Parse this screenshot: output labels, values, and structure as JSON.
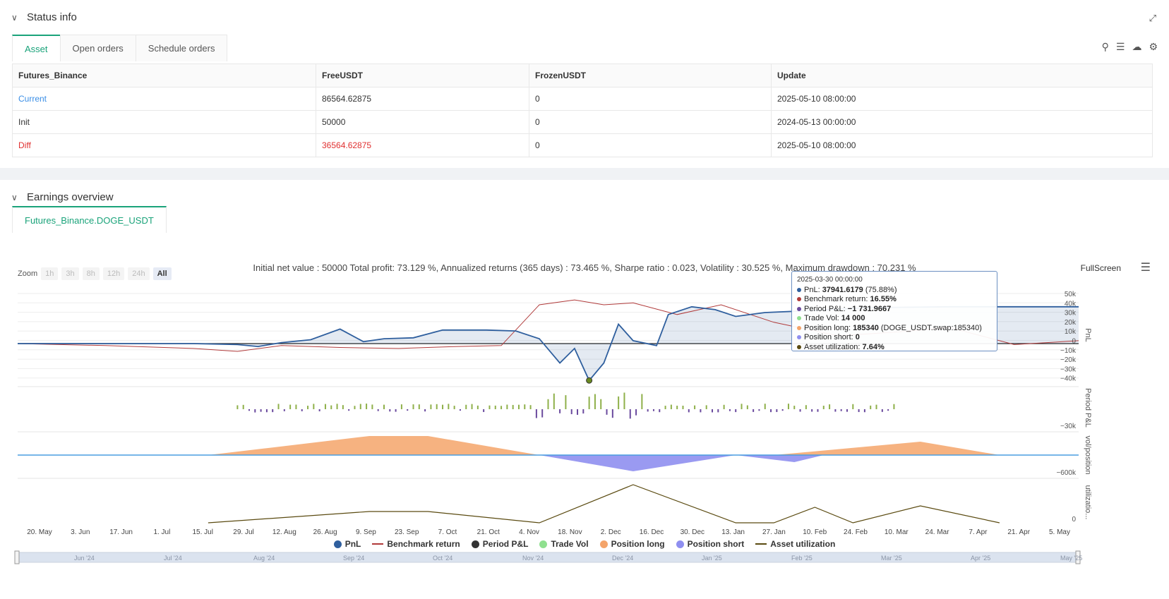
{
  "status": {
    "title": "Status info",
    "tabs": [
      "Asset",
      "Open orders",
      "Schedule orders"
    ],
    "table": {
      "headers": [
        "Futures_Binance",
        "FreeUSDT",
        "FrozenUSDT",
        "Update"
      ],
      "rows": [
        [
          "Current",
          "86564.62875",
          "0",
          "2025-05-10 08:00:00"
        ],
        [
          "Init",
          "50000",
          "0",
          "2024-05-13 00:00:00"
        ],
        [
          "Diff",
          "36564.62875",
          "0",
          "2025-05-10 08:00:00"
        ]
      ]
    }
  },
  "earnings": {
    "title": "Earnings overview",
    "tab": "Futures_Binance.DOGE_USDT",
    "summary": "Initial net value : 50000 Total profit: 73.129 %, Annualized returns (365 days) : 73.465 %, Sharpe ratio : 0.023, Volatility : 30.525 %, Maximum drawdown : 70.231 %",
    "fullscreen": "FullScreen",
    "zoom_label": "Zoom",
    "zoom_buttons": [
      "1h",
      "3h",
      "8h",
      "12h",
      "24h",
      "All"
    ]
  },
  "tooltip": {
    "date": "2025-03-30 00:00:00",
    "pnl_label": "PnL: ",
    "pnl_value": "37941.6179",
    "pnl_pct": " (75.88%)",
    "bench_label": "Benchmark return: ",
    "bench_value": "16.55%",
    "period_label": "Period P&L: ",
    "period_value": "−1 731.9667",
    "vol_label": "Trade Vol: ",
    "vol_value": "14 000",
    "long_label": "Position long: ",
    "long_value": "185340",
    "long_extra": " (DOGE_USDT.swap:185340)",
    "short_label": "Position short: ",
    "short_value": "0",
    "util_label": "Asset utilization: ",
    "util_value": "7.64%"
  },
  "axes": {
    "pnl_ticks": [
      "50k",
      "40k",
      "30k",
      "20k",
      "10k",
      "0",
      "−10k",
      "−20k",
      "−30k",
      "−40k"
    ],
    "period_tick": "−30k",
    "position_tick": "−600k",
    "util_tick": "0",
    "panel_labels": [
      "PnL",
      "Period P&L",
      "vol/position",
      "utilizatio..."
    ],
    "x_ticks": [
      "20. May",
      "3. Jun",
      "17. Jun",
      "1. Jul",
      "15. Jul",
      "29. Jul",
      "12. Aug",
      "26. Aug",
      "9. Sep",
      "23. Sep",
      "7. Oct",
      "21. Oct",
      "4. Nov",
      "18. Nov",
      "2. Dec",
      "16. Dec",
      "30. Dec",
      "13. Jan",
      "27. Jan",
      "10. Feb",
      "24. Feb",
      "10. Mar",
      "24. Mar",
      "7. Apr",
      "21. Apr",
      "5. May"
    ],
    "nav_ticks": [
      "Jun '24",
      "Jul '24",
      "Aug '24",
      "Sep '24",
      "Oct '24",
      "Nov '24",
      "Dec '24",
      "Jan '25",
      "Feb '25",
      "Mar '25",
      "Apr '25",
      "May '25"
    ]
  },
  "legend": [
    "PnL",
    "Benchmark return",
    "Period P&L",
    "Trade Vol",
    "Position long",
    "Position short",
    "Asset utilization"
  ],
  "colors": {
    "pnl": "#2f5f9e",
    "benchmark": "#b03a3a",
    "period_pos": "#8fb04a",
    "period_neg": "#6a4a9e",
    "trade_vol": "#8fe08f",
    "position_long": "#f4a46a",
    "position_short": "#8f8ff0",
    "util": "#5a4a10",
    "accent": "#1aa37a"
  },
  "chart_data": {
    "type": "line",
    "x_range": [
      "2024-05-13",
      "2025-05-10"
    ],
    "series": [
      {
        "name": "PnL",
        "unit": "USDT",
        "points": [
          [
            0,
            0
          ],
          [
            60,
            0
          ],
          [
            75,
            -1000
          ],
          [
            82,
            -3000
          ],
          [
            90,
            1000
          ],
          [
            100,
            4000
          ],
          [
            110,
            15000
          ],
          [
            118,
            2000
          ],
          [
            125,
            5000
          ],
          [
            135,
            6000
          ],
          [
            145,
            14000
          ],
          [
            160,
            14000
          ],
          [
            170,
            13000
          ],
          [
            178,
            5000
          ],
          [
            185,
            -20000
          ],
          [
            190,
            -5000
          ],
          [
            195,
            -38000
          ],
          [
            200,
            -20000
          ],
          [
            205,
            20000
          ],
          [
            210,
            3000
          ],
          [
            218,
            -2000
          ],
          [
            222,
            30000
          ],
          [
            230,
            38000
          ],
          [
            238,
            35000
          ],
          [
            245,
            28000
          ],
          [
            255,
            32000
          ],
          [
            270,
            34000
          ],
          [
            290,
            37000
          ],
          [
            318,
            37941
          ],
          [
            330,
            38000
          ],
          [
            362,
            38000
          ]
        ]
      },
      {
        "name": "Benchmark return",
        "unit": "USDT",
        "points": [
          [
            0,
            0
          ],
          [
            30,
            -2000
          ],
          [
            60,
            -5000
          ],
          [
            75,
            -8000
          ],
          [
            90,
            -2000
          ],
          [
            110,
            -4000
          ],
          [
            130,
            -5000
          ],
          [
            150,
            -3000
          ],
          [
            165,
            -2000
          ],
          [
            178,
            40000
          ],
          [
            190,
            45000
          ],
          [
            200,
            40000
          ],
          [
            210,
            42000
          ],
          [
            225,
            30000
          ],
          [
            240,
            40000
          ],
          [
            258,
            22000
          ],
          [
            280,
            8000
          ],
          [
            300,
            12000
          ],
          [
            318,
            16550
          ],
          [
            340,
            -1000
          ],
          [
            362,
            3000
          ]
        ]
      }
    ]
  }
}
